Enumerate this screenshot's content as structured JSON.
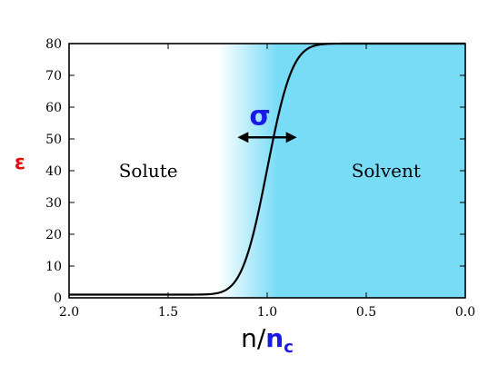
{
  "chart_data": {
    "type": "line",
    "title": "",
    "ylabel": "ε",
    "xlabel_main": "n/",
    "xlabel_accent": "n",
    "xlabel_sub": "c",
    "xlim": [
      2.0,
      0.0
    ],
    "ylim": [
      0,
      80
    ],
    "x_reversed": true,
    "x_ticks": [
      2.0,
      1.5,
      1.0,
      0.5,
      0.0
    ],
    "x_tick_labels": [
      "2.0",
      "1.5",
      "1.0",
      "0.5",
      "0.0"
    ],
    "y_ticks": [
      0,
      10,
      20,
      30,
      40,
      50,
      60,
      70,
      80
    ],
    "y_tick_labels": [
      "0",
      "10",
      "20",
      "30",
      "40",
      "50",
      "60",
      "70",
      "80"
    ],
    "curve": {
      "shape": "error-function switching",
      "eps_min": 1,
      "eps_max": 80,
      "center": 1.0,
      "sigma": 0.1
    },
    "annotations": {
      "solute": "Solute",
      "solvent": "Solvent",
      "sigma": "σ"
    },
    "shading": {
      "region": "solvent",
      "color": "#79dcf7",
      "gradient_from": 1.25,
      "gradient_to": 0.75
    },
    "colors": {
      "ylabel": "#e01010",
      "accent": "#1a1ae6",
      "curve": "#000000",
      "arrow": "#000000"
    }
  }
}
